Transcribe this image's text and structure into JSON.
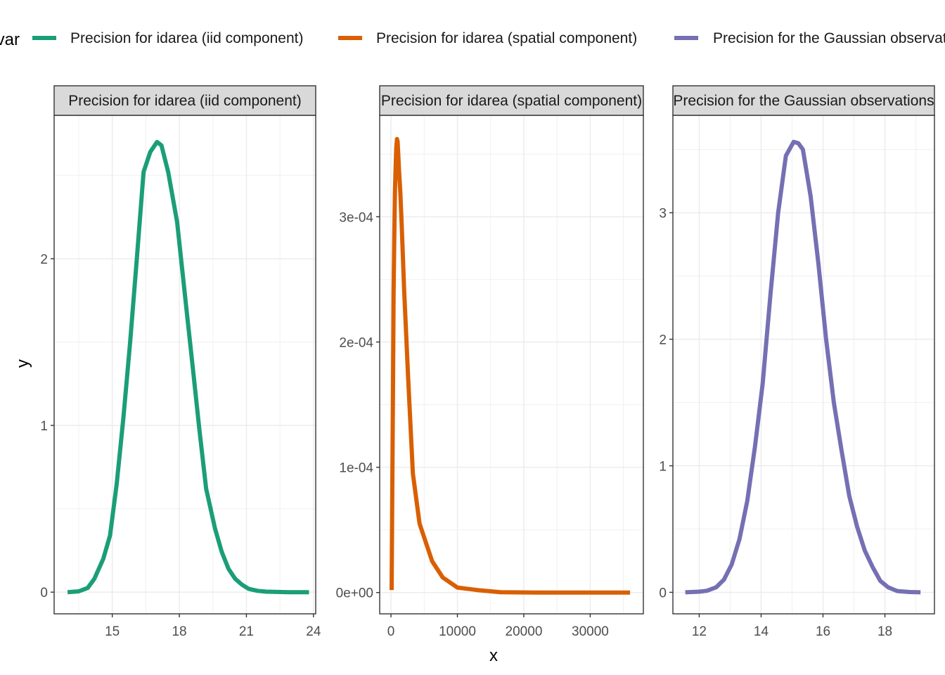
{
  "chart_data": {
    "type": "line",
    "legend": {
      "title": "var",
      "position": "top",
      "entries": [
        {
          "label": "Precision for idarea (iid component)",
          "color": "#1B9E77"
        },
        {
          "label": "Precision for idarea (spatial component)",
          "color": "#D95F02"
        },
        {
          "label": "Precision for the Gaussian observations",
          "color": "#7570B3"
        }
      ]
    },
    "xlabel": "x",
    "ylabel": "y",
    "grid": true,
    "panels": [
      {
        "strip": "Precision for idarea (iid component)",
        "color": "#1B9E77",
        "xlim": [
          12.4,
          24.1
        ],
        "ylim": [
          -0.13,
          2.86
        ],
        "xticks": [
          {
            "v": 15,
            "t": "15"
          },
          {
            "v": 18,
            "t": "18"
          },
          {
            "v": 21,
            "t": "21"
          },
          {
            "v": 24,
            "t": "24"
          }
        ],
        "yticks": [
          {
            "v": 0,
            "t": "0"
          },
          {
            "v": 1,
            "t": "1"
          },
          {
            "v": 2,
            "t": "2"
          }
        ],
        "x": [
          13.0,
          13.5,
          13.9,
          14.2,
          14.6,
          14.9,
          15.2,
          15.5,
          15.8,
          16.1,
          16.4,
          16.7,
          17.0,
          17.2,
          17.5,
          17.9,
          18.3,
          18.6,
          18.9,
          19.2,
          19.6,
          19.9,
          20.2,
          20.5,
          20.8,
          21.1,
          21.5,
          21.9,
          22.4,
          22.9,
          23.8
        ],
        "y": [
          0.0,
          0.005,
          0.025,
          0.08,
          0.2,
          0.34,
          0.65,
          1.05,
          1.5,
          2.0,
          2.52,
          2.64,
          2.7,
          2.68,
          2.52,
          2.22,
          1.72,
          1.35,
          0.97,
          0.62,
          0.38,
          0.24,
          0.14,
          0.08,
          0.045,
          0.02,
          0.008,
          0.003,
          0.001,
          0.0,
          0.0
        ]
      },
      {
        "strip": "Precision for idarea (spatial component)",
        "color": "#D95F02",
        "xlim": [
          -1700,
          38000
        ],
        "ylim": [
          -1.7e-05,
          0.000381
        ],
        "xticks": [
          {
            "v": 0,
            "t": "0"
          },
          {
            "v": 10000,
            "t": "10000"
          },
          {
            "v": 20000,
            "t": "20000"
          },
          {
            "v": 30000,
            "t": "30000"
          }
        ],
        "yticks": [
          {
            "v": 0,
            "t": "0e+00"
          },
          {
            "v": 0.0001,
            "t": "1e-04"
          },
          {
            "v": 0.0002,
            "t": "2e-04"
          },
          {
            "v": 0.0003,
            "t": "3e-04"
          }
        ],
        "x": [
          100,
          200,
          300,
          400,
          500,
          600,
          700,
          800,
          900,
          1000,
          1100,
          1200,
          1400,
          1600,
          2000,
          2600,
          3300,
          4300,
          6200,
          7800,
          10000,
          13000,
          16500,
          22000,
          28000,
          36000
        ],
        "y": [
          2e-06,
          8e-05,
          0.00016,
          0.00024,
          0.000285,
          0.00032,
          0.00034,
          0.000355,
          0.000362,
          0.00036,
          0.00035,
          0.000338,
          0.00032,
          0.000295,
          0.00024,
          0.00017,
          9.5e-05,
          5.5e-05,
          2.5e-05,
          1.2e-05,
          4e-06,
          2e-06,
          3e-07,
          0.0,
          0.0,
          0.0
        ]
      },
      {
        "strip": "Precision for the Gaussian observations",
        "color": "#7570B3",
        "xlim": [
          11.15,
          19.6
        ],
        "ylim": [
          -0.17,
          3.77
        ],
        "xticks": [
          {
            "v": 12,
            "t": "12"
          },
          {
            "v": 14,
            "t": "14"
          },
          {
            "v": 16,
            "t": "16"
          },
          {
            "v": 18,
            "t": "18"
          }
        ],
        "yticks": [
          {
            "v": 0,
            "t": "0"
          },
          {
            "v": 1,
            "t": "1"
          },
          {
            "v": 2,
            "t": "2"
          },
          {
            "v": 3,
            "t": "3"
          }
        ],
        "x": [
          11.55,
          12.0,
          12.25,
          12.55,
          12.8,
          13.05,
          13.3,
          13.55,
          13.8,
          14.05,
          14.3,
          14.55,
          14.8,
          15.05,
          15.2,
          15.35,
          15.6,
          15.85,
          16.1,
          16.35,
          16.6,
          16.85,
          17.1,
          17.35,
          17.6,
          17.85,
          18.1,
          18.4,
          18.8,
          19.15
        ],
        "y": [
          0.0,
          0.005,
          0.012,
          0.04,
          0.1,
          0.22,
          0.42,
          0.72,
          1.15,
          1.65,
          2.35,
          3.0,
          3.45,
          3.56,
          3.55,
          3.5,
          3.13,
          2.6,
          2.0,
          1.5,
          1.12,
          0.76,
          0.52,
          0.33,
          0.2,
          0.09,
          0.04,
          0.01,
          0.002,
          0.0
        ]
      }
    ]
  }
}
